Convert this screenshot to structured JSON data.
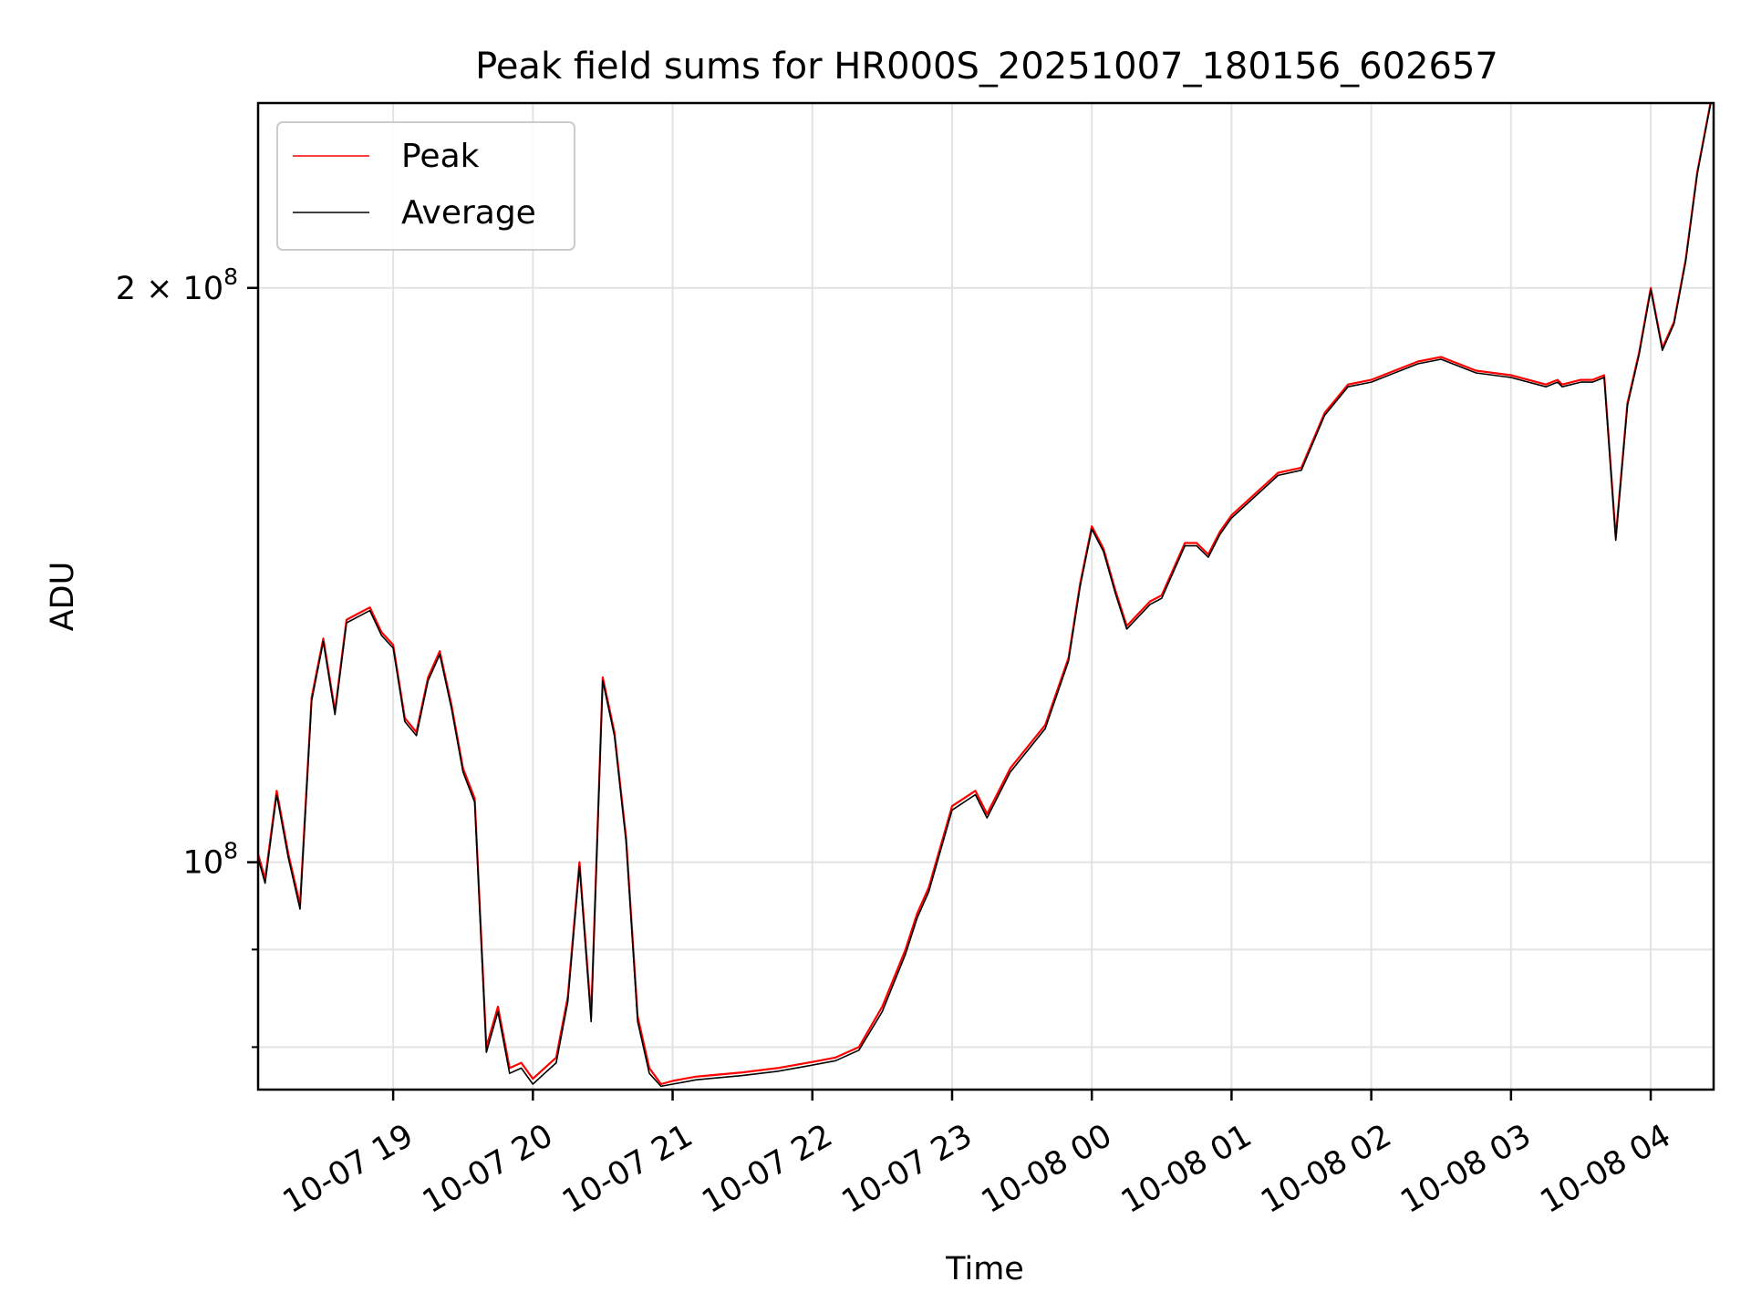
{
  "chart_data": {
    "type": "line",
    "title": "Peak field sums for HR000S_20251007_180156_602657",
    "xlabel": "Time",
    "ylabel": "ADU",
    "yscale": "log",
    "xlim": [
      "2025-10-07 18:02",
      "2025-10-08 04:27"
    ],
    "ylim": [
      76000000,
      250000000
    ],
    "x_ticks": [
      {
        "t": "2025-10-07 19:00",
        "label": "10-07 19"
      },
      {
        "t": "2025-10-07 20:00",
        "label": "10-07 20"
      },
      {
        "t": "2025-10-07 21:00",
        "label": "10-07 21"
      },
      {
        "t": "2025-10-07 22:00",
        "label": "10-07 22"
      },
      {
        "t": "2025-10-07 23:00",
        "label": "10-07 23"
      },
      {
        "t": "2025-10-08 00:00",
        "label": "10-08 00"
      },
      {
        "t": "2025-10-08 01:00",
        "label": "10-08 01"
      },
      {
        "t": "2025-10-08 02:00",
        "label": "10-08 02"
      },
      {
        "t": "2025-10-08 03:00",
        "label": "10-08 03"
      },
      {
        "t": "2025-10-08 04:00",
        "label": "10-08 04"
      }
    ],
    "y_major_ticks": [
      {
        "value": 100000000,
        "base": "10",
        "exp": "8"
      },
      {
        "value": 200000000,
        "base": "2 × 10",
        "exp": "8"
      }
    ],
    "y_minor_ticks": [
      80000000,
      90000000
    ],
    "grid": true,
    "legend": {
      "placement": "top-left"
    },
    "series": [
      {
        "name": "Peak",
        "color": "#ff0000",
        "x": [
          "2025-10-07 18:02",
          "2025-10-07 18:05",
          "2025-10-07 18:10",
          "2025-10-07 18:15",
          "2025-10-07 18:20",
          "2025-10-07 18:25",
          "2025-10-07 18:30",
          "2025-10-07 18:35",
          "2025-10-07 18:40",
          "2025-10-07 18:45",
          "2025-10-07 18:50",
          "2025-10-07 18:55",
          "2025-10-07 19:00",
          "2025-10-07 19:05",
          "2025-10-07 19:10",
          "2025-10-07 19:15",
          "2025-10-07 19:20",
          "2025-10-07 19:25",
          "2025-10-07 19:30",
          "2025-10-07 19:35",
          "2025-10-07 19:40",
          "2025-10-07 19:45",
          "2025-10-07 19:50",
          "2025-10-07 19:55",
          "2025-10-07 20:00",
          "2025-10-07 20:05",
          "2025-10-07 20:10",
          "2025-10-07 20:15",
          "2025-10-07 20:20",
          "2025-10-07 20:25",
          "2025-10-07 20:30",
          "2025-10-07 20:35",
          "2025-10-07 20:40",
          "2025-10-07 20:45",
          "2025-10-07 20:50",
          "2025-10-07 20:55",
          "2025-10-07 21:00",
          "2025-10-07 21:05",
          "2025-10-07 21:10",
          "2025-10-07 21:15",
          "2025-10-07 21:30",
          "2025-10-07 21:45",
          "2025-10-07 21:58",
          "2025-10-07 22:10",
          "2025-10-07 22:20",
          "2025-10-07 22:30",
          "2025-10-07 22:40",
          "2025-10-07 22:45",
          "2025-10-07 22:50",
          "2025-10-07 23:00",
          "2025-10-07 23:10",
          "2025-10-07 23:15",
          "2025-10-07 23:25",
          "2025-10-07 23:40",
          "2025-10-07 23:50",
          "2025-10-07 23:55",
          "2025-10-08 00:00",
          "2025-10-08 00:05",
          "2025-10-08 00:10",
          "2025-10-08 00:15",
          "2025-10-08 00:25",
          "2025-10-08 00:30",
          "2025-10-08 00:40",
          "2025-10-08 00:45",
          "2025-10-08 00:50",
          "2025-10-08 00:55",
          "2025-10-08 01:00",
          "2025-10-08 01:20",
          "2025-10-08 01:30",
          "2025-10-08 01:40",
          "2025-10-08 01:50",
          "2025-10-08 02:00",
          "2025-10-08 02:20",
          "2025-10-08 02:30",
          "2025-10-08 02:45",
          "2025-10-08 03:00",
          "2025-10-08 03:15",
          "2025-10-08 03:20",
          "2025-10-08 03:22",
          "2025-10-08 03:30",
          "2025-10-08 03:35",
          "2025-10-08 03:40",
          "2025-10-08 03:45",
          "2025-10-08 03:50",
          "2025-10-08 03:55",
          "2025-10-08 04:00",
          "2025-10-08 04:05",
          "2025-10-08 04:10",
          "2025-10-08 04:15",
          "2025-10-08 04:20",
          "2025-10-08 04:27"
        ],
        "y": [
          101000000,
          98000000,
          109000000,
          101000000,
          95000000,
          122000000,
          131000000,
          120000000,
          134000000,
          135000000,
          136000000,
          132000000,
          130000000,
          119000000,
          117000000,
          125000000,
          129000000,
          121000000,
          112000000,
          108000000,
          80000000,
          84000000,
          78000000,
          78500000,
          77000000,
          78000000,
          79000000,
          85000000,
          100000000,
          83000000,
          125000000,
          117000000,
          103000000,
          83000000,
          78000000,
          76500000,
          76800000,
          77000000,
          77200000,
          77300000,
          77600000,
          78000000,
          78500000,
          79000000,
          80000000,
          84000000,
          90000000,
          94000000,
          97000000,
          107000000,
          109000000,
          106000000,
          112000000,
          118000000,
          128000000,
          140000000,
          150000000,
          146000000,
          139000000,
          133000000,
          137000000,
          138000000,
          147000000,
          147000000,
          145000000,
          149000000,
          152000000,
          160000000,
          161000000,
          172000000,
          178000000,
          179000000,
          183000000,
          184000000,
          181000000,
          180000000,
          178000000,
          179000000,
          178000000,
          179000000,
          179000000,
          180000000,
          148000000,
          174000000,
          185000000,
          200000000,
          186000000,
          192000000,
          207000000,
          230000000,
          255000000
        ]
      },
      {
        "name": "Average",
        "color": "#000000",
        "x": [
          "2025-10-07 18:02",
          "2025-10-07 18:05",
          "2025-10-07 18:10",
          "2025-10-07 18:15",
          "2025-10-07 18:20",
          "2025-10-07 18:25",
          "2025-10-07 18:30",
          "2025-10-07 18:35",
          "2025-10-07 18:40",
          "2025-10-07 18:45",
          "2025-10-07 18:50",
          "2025-10-07 18:55",
          "2025-10-07 19:00",
          "2025-10-07 19:05",
          "2025-10-07 19:10",
          "2025-10-07 19:15",
          "2025-10-07 19:20",
          "2025-10-07 19:25",
          "2025-10-07 19:30",
          "2025-10-07 19:35",
          "2025-10-07 19:40",
          "2025-10-07 19:45",
          "2025-10-07 19:50",
          "2025-10-07 19:55",
          "2025-10-07 20:00",
          "2025-10-07 20:05",
          "2025-10-07 20:10",
          "2025-10-07 20:15",
          "2025-10-07 20:20",
          "2025-10-07 20:25",
          "2025-10-07 20:30",
          "2025-10-07 20:35",
          "2025-10-07 20:40",
          "2025-10-07 20:45",
          "2025-10-07 20:50",
          "2025-10-07 20:55",
          "2025-10-07 21:00",
          "2025-10-07 21:05",
          "2025-10-07 21:10",
          "2025-10-07 21:15",
          "2025-10-07 21:30",
          "2025-10-07 21:45",
          "2025-10-07 21:58",
          "2025-10-07 22:10",
          "2025-10-07 22:20",
          "2025-10-07 22:30",
          "2025-10-07 22:40",
          "2025-10-07 22:45",
          "2025-10-07 22:50",
          "2025-10-07 23:00",
          "2025-10-07 23:10",
          "2025-10-07 23:15",
          "2025-10-07 23:25",
          "2025-10-07 23:40",
          "2025-10-07 23:50",
          "2025-10-07 23:55",
          "2025-10-08 00:00",
          "2025-10-08 00:05",
          "2025-10-08 00:10",
          "2025-10-08 00:15",
          "2025-10-08 00:25",
          "2025-10-08 00:30",
          "2025-10-08 00:40",
          "2025-10-08 00:45",
          "2025-10-08 00:50",
          "2025-10-08 00:55",
          "2025-10-08 01:00",
          "2025-10-08 01:20",
          "2025-10-08 01:30",
          "2025-10-08 01:40",
          "2025-10-08 01:50",
          "2025-10-08 02:00",
          "2025-10-08 02:20",
          "2025-10-08 02:30",
          "2025-10-08 02:45",
          "2025-10-08 03:00",
          "2025-10-08 03:15",
          "2025-10-08 03:20",
          "2025-10-08 03:22",
          "2025-10-08 03:30",
          "2025-10-08 03:35",
          "2025-10-08 03:40",
          "2025-10-08 03:45",
          "2025-10-08 03:50",
          "2025-10-08 03:55",
          "2025-10-08 04:00",
          "2025-10-08 04:05",
          "2025-10-08 04:10",
          "2025-10-08 04:15",
          "2025-10-08 04:20",
          "2025-10-08 04:27"
        ],
        "y": [
          100500000,
          97500000,
          108500000,
          100500000,
          94500000,
          121500000,
          130500000,
          119500000,
          133500000,
          134500000,
          135500000,
          131500000,
          129500000,
          118500000,
          116500000,
          124500000,
          128500000,
          120500000,
          111500000,
          107500000,
          79500000,
          83500000,
          77500000,
          78000000,
          76500000,
          77500000,
          78500000,
          84500000,
          99500000,
          82500000,
          124500000,
          116500000,
          102500000,
          82500000,
          77500000,
          76300000,
          76500000,
          76700000,
          76900000,
          77000000,
          77300000,
          77700000,
          78200000,
          78700000,
          79700000,
          83500000,
          89500000,
          93500000,
          96500000,
          106500000,
          108500000,
          105500000,
          111500000,
          117500000,
          127500000,
          139500000,
          149500000,
          145500000,
          138500000,
          132500000,
          136500000,
          137500000,
          146500000,
          146500000,
          144500000,
          148500000,
          151500000,
          159500000,
          160500000,
          171500000,
          177500000,
          178500000,
          182500000,
          183500000,
          180500000,
          179500000,
          177500000,
          178500000,
          177500000,
          178500000,
          178500000,
          179500000,
          147500000,
          173500000,
          184500000,
          199500000,
          185500000,
          191500000,
          206500000,
          229500000,
          254500000
        ]
      }
    ]
  }
}
